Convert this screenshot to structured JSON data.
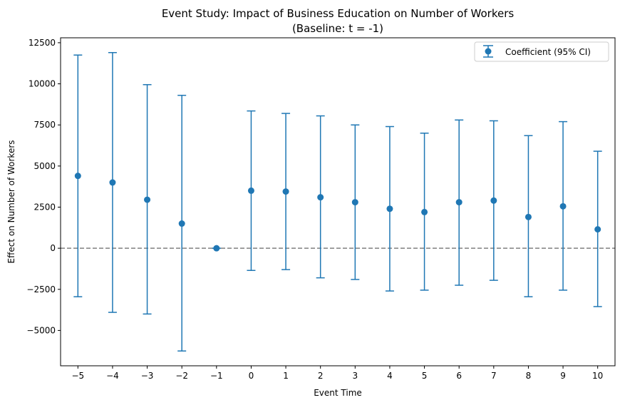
{
  "chart_data": {
    "type": "scatter",
    "title": "Event Study: Impact of Business Education on Number of Workers",
    "subtitle": "(Baseline: t = -1)",
    "xlabel": "Event Time",
    "ylabel": "Effect on Number of Workers",
    "x": [
      -5,
      -4,
      -3,
      -2,
      -1,
      0,
      1,
      2,
      3,
      4,
      5,
      6,
      7,
      8,
      9,
      10
    ],
    "x_tick_labels": [
      "−5",
      "−4",
      "−3",
      "−2",
      "−1",
      "0",
      "1",
      "2",
      "3",
      "4",
      "5",
      "6",
      "7",
      "8",
      "9",
      "10"
    ],
    "y_ticks": [
      -5000,
      -2500,
      0,
      2500,
      5000,
      7500,
      10000,
      12500
    ],
    "y_tick_labels": [
      "−5000",
      "−2500",
      "0",
      "2500",
      "5000",
      "7500",
      "10000",
      "12500"
    ],
    "xlim": [
      -5.5,
      10.5
    ],
    "ylim": [
      -7150,
      12800
    ],
    "series": [
      {
        "name": "Coefficient (95% CI)",
        "color": "#1f77b4",
        "values": [
          4400,
          4000,
          2950,
          1500,
          0,
          3500,
          3450,
          3100,
          2800,
          2400,
          2200,
          2800,
          2900,
          1900,
          2550,
          1150
        ],
        "ci_lower": [
          -2950,
          -3900,
          -4000,
          -6250,
          0,
          -1350,
          -1300,
          -1800,
          -1900,
          -2600,
          -2550,
          -2250,
          -1950,
          -2950,
          -2550,
          -3550
        ],
        "ci_upper": [
          11750,
          11900,
          9950,
          9300,
          0,
          8350,
          8200,
          8050,
          7500,
          7400,
          7000,
          7800,
          7750,
          6850,
          7700,
          5900
        ]
      }
    ],
    "reference_line": {
      "y": 0,
      "style": "dashed",
      "color": "#808080"
    },
    "grid": false,
    "legend_position": "top-right"
  }
}
